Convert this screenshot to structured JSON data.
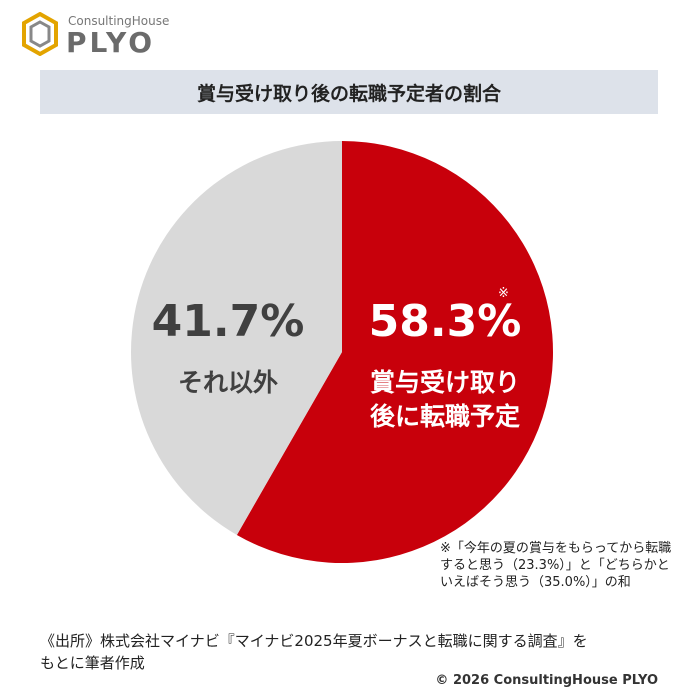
{
  "logo": {
    "tagline": "ConsultingHouse",
    "name": "PLYO"
  },
  "chart_data": {
    "type": "pie",
    "title": "賞与受け取り後の転職予定者の割合",
    "categories": [
      "賞与受け取り後に転職予定",
      "それ以外"
    ],
    "values": [
      58.3,
      41.7
    ],
    "value_labels": [
      "58.3%",
      "41.7%"
    ],
    "colors": [
      "#c8000b",
      "#d9d9d9"
    ],
    "note_marker": "※",
    "note": "※「今年の夏の賞与をもらってから転職すると思う（23.3%）」と「どちらかといえばそう思う（35.0%）」の和"
  },
  "source": "《出所》株式会社マイナビ『マイナビ2025年夏ボーナスと転職に関する調査』をもとに筆者作成",
  "copyright": "© 2026 ConsultingHouse PLYO"
}
